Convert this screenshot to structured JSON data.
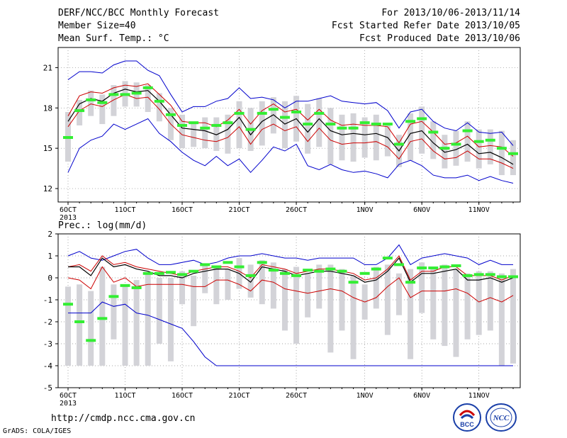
{
  "header": {
    "title": "DERF/NCC/BCC Monthly Forecast",
    "member_size": "Member Size=40",
    "variable": "Mean Surf. Temp.: °C",
    "forecast_range": "For 2013/10/06-2013/11/14",
    "start_refer": "Fcst Started Refer Date 2013/10/05",
    "produced": "Fcst Produced Date 2013/10/06"
  },
  "footer": {
    "url": "http://cmdp.ncc.cma.gov.cn",
    "credit": "GrADS: COLA/IGES",
    "logo_bcc": "BCC",
    "logo_ncc": "NCC"
  },
  "colors": {
    "ensemble_range": "#0000cc",
    "spread": "#cc0000",
    "mean": "#000000",
    "box": "#d3d3d8",
    "observed": "#33ee33"
  },
  "chart_data": [
    {
      "type": "box",
      "title": "Mean Surf. Temp.: °C",
      "ylim": [
        11,
        22.5
      ],
      "yticks": [
        12,
        15,
        18,
        21
      ],
      "ytick_labels": [
        "12",
        "15",
        "18",
        "21"
      ],
      "xticks": [
        {
          "day": 0,
          "label": "6OCT",
          "sub": "2013"
        },
        {
          "day": 5,
          "label": "11OCT"
        },
        {
          "day": 10,
          "label": "16OCT"
        },
        {
          "day": 15,
          "label": "21OCT"
        },
        {
          "day": 20,
          "label": "26OCT"
        },
        {
          "day": 26,
          "label": "1NOV"
        },
        {
          "day": 31,
          "label": "6NOV"
        },
        {
          "day": 36,
          "label": "11NOV"
        }
      ],
      "grid": true,
      "x_days": [
        0,
        1,
        2,
        3,
        4,
        5,
        6,
        7,
        8,
        9,
        10,
        11,
        12,
        13,
        14,
        15,
        16,
        17,
        18,
        19,
        20,
        21,
        22,
        23,
        24,
        25,
        26,
        27,
        28,
        29,
        30,
        31,
        32,
        33,
        34,
        35,
        36,
        37,
        38,
        39
      ],
      "series": [
        {
          "role": "max",
          "values": [
            20.1,
            20.7,
            20.7,
            20.6,
            21.2,
            21.5,
            21.5,
            20.8,
            20.4,
            19.0,
            17.7,
            18.1,
            18.1,
            18.5,
            18.7,
            19.5,
            18.7,
            18.8,
            18.6,
            18.0,
            18.5,
            18.5,
            18.7,
            18.9,
            18.5,
            18.4,
            18.3,
            18.4,
            17.8,
            16.5,
            17.7,
            17.9,
            17.0,
            16.5,
            16.3,
            16.9,
            16.2,
            16.1,
            16.2,
            15.2
          ]
        },
        {
          "role": "upper",
          "values": [
            17.4,
            18.9,
            19.2,
            19.1,
            19.5,
            19.7,
            19.6,
            19.8,
            19.0,
            18.2,
            17.0,
            16.9,
            16.9,
            16.6,
            17.1,
            17.9,
            16.8,
            17.8,
            18.3,
            17.7,
            17.9,
            17.1,
            17.9,
            17.1,
            16.7,
            16.8,
            16.7,
            16.7,
            16.6,
            15.4,
            16.8,
            17.0,
            16.2,
            15.3,
            15.4,
            15.9,
            15.1,
            15.2,
            15.1,
            14.4
          ]
        },
        {
          "role": "mean",
          "values": [
            17.0,
            18.3,
            18.7,
            18.5,
            19.1,
            19.4,
            19.2,
            19.3,
            18.5,
            17.5,
            16.5,
            16.4,
            16.3,
            16.0,
            16.4,
            17.3,
            16.0,
            17.0,
            17.5,
            16.8,
            17.2,
            16.2,
            17.2,
            16.3,
            16.0,
            16.1,
            16.0,
            16.1,
            15.8,
            14.8,
            16.1,
            16.3,
            15.4,
            14.7,
            14.9,
            15.3,
            14.6,
            14.7,
            14.3,
            13.8
          ]
        },
        {
          "role": "lower",
          "values": [
            16.6,
            17.8,
            18.3,
            18.1,
            18.6,
            19.0,
            18.7,
            18.8,
            17.9,
            16.8,
            16.0,
            15.8,
            15.6,
            15.5,
            15.8,
            16.6,
            15.3,
            16.4,
            16.8,
            16.3,
            16.6,
            15.5,
            16.5,
            15.6,
            15.3,
            15.4,
            15.4,
            15.5,
            15.1,
            14.2,
            15.5,
            15.7,
            14.8,
            14.2,
            14.3,
            14.8,
            14.2,
            14.2,
            13.9,
            13.5
          ]
        },
        {
          "role": "min",
          "values": [
            13.2,
            15.0,
            15.6,
            15.9,
            16.8,
            16.4,
            16.8,
            17.2,
            16.1,
            15.5,
            14.7,
            14.1,
            13.7,
            14.4,
            13.7,
            14.2,
            13.2,
            14.1,
            15.1,
            14.8,
            15.3,
            13.7,
            13.4,
            13.8,
            13.4,
            13.2,
            13.3,
            13.1,
            12.8,
            13.8,
            14.1,
            13.7,
            13.0,
            12.8,
            12.8,
            13.0,
            12.6,
            12.9,
            12.6,
            12.4
          ]
        }
      ],
      "boxes": [
        {
          "low": 14.0,
          "high": 17.7
        },
        {
          "low": 16.7,
          "high": 18.6
        },
        {
          "low": 17.4,
          "high": 19.3
        },
        {
          "low": 16.8,
          "high": 19.0
        },
        {
          "low": 17.4,
          "high": 19.7
        },
        {
          "low": 18.1,
          "high": 20.0
        },
        {
          "low": 18.1,
          "high": 19.9
        },
        {
          "low": 17.7,
          "high": 19.7
        },
        {
          "low": 17.0,
          "high": 19.1
        },
        {
          "low": 15.6,
          "high": 18.0
        },
        {
          "low": 15.0,
          "high": 17.5
        },
        {
          "low": 15.1,
          "high": 16.9
        },
        {
          "low": 15.0,
          "high": 17.3
        },
        {
          "low": 14.8,
          "high": 17.3
        },
        {
          "low": 14.6,
          "high": 17.5
        },
        {
          "low": 15.0,
          "high": 18.5
        },
        {
          "low": 14.8,
          "high": 18.0
        },
        {
          "low": 15.2,
          "high": 18.5
        },
        {
          "low": 16.1,
          "high": 18.8
        },
        {
          "low": 15.0,
          "high": 18.5
        },
        {
          "low": 15.5,
          "high": 18.9
        },
        {
          "low": 14.6,
          "high": 18.3
        },
        {
          "low": 15.1,
          "high": 18.7
        },
        {
          "low": 13.8,
          "high": 18.0
        },
        {
          "low": 14.1,
          "high": 17.5
        },
        {
          "low": 14.0,
          "high": 17.6
        },
        {
          "low": 14.3,
          "high": 17.3
        },
        {
          "low": 14.1,
          "high": 17.5
        },
        {
          "low": 14.4,
          "high": 16.8
        },
        {
          "low": 13.6,
          "high": 16.0
        },
        {
          "low": 14.1,
          "high": 17.6
        },
        {
          "low": 14.6,
          "high": 18.1
        },
        {
          "low": 14.2,
          "high": 17.0
        },
        {
          "low": 13.5,
          "high": 16.0
        },
        {
          "low": 13.7,
          "high": 16.3
        },
        {
          "low": 14.0,
          "high": 17.0
        },
        {
          "low": 13.5,
          "high": 16.4
        },
        {
          "low": 13.8,
          "high": 16.4
        },
        {
          "low": 13.0,
          "high": 16.3
        },
        {
          "low": 13.0,
          "high": 15.6
        }
      ],
      "observed": [
        15.8,
        17.8,
        18.6,
        18.4,
        19.0,
        19.0,
        19.1,
        19.5,
        18.5,
        17.5,
        16.7,
        16.9,
        16.5,
        16.7,
        16.9,
        17.6,
        16.4,
        17.6,
        17.9,
        17.3,
        17.7,
        16.8,
        17.6,
        16.8,
        16.5,
        16.5,
        16.9,
        16.8,
        16.8,
        15.3,
        17.0,
        17.2,
        16.2,
        15.0,
        15.3,
        16.3,
        15.5,
        15.6,
        15.0,
        14.6
      ]
    },
    {
      "type": "box",
      "title": "Prec.: log(mm/d)",
      "ylim": [
        -5,
        2
      ],
      "yticks": [
        -5,
        -4,
        -3,
        -2,
        -1,
        0,
        1,
        2
      ],
      "ytick_labels": [
        "-5",
        "-4",
        "-3",
        "-2",
        "-1",
        "0",
        "1",
        "2"
      ],
      "xticks": [
        {
          "day": 0,
          "label": "6OCT",
          "sub": "2013"
        },
        {
          "day": 5,
          "label": "11OCT"
        },
        {
          "day": 10,
          "label": "16OCT"
        },
        {
          "day": 15,
          "label": "21OCT"
        },
        {
          "day": 20,
          "label": "26OCT"
        },
        {
          "day": 26,
          "label": "1NOV"
        },
        {
          "day": 31,
          "label": "6NOV"
        },
        {
          "day": 36,
          "label": "11NOV"
        }
      ],
      "grid": true,
      "x_days": [
        0,
        1,
        2,
        3,
        4,
        5,
        6,
        7,
        8,
        9,
        10,
        11,
        12,
        13,
        14,
        15,
        16,
        17,
        18,
        19,
        20,
        21,
        22,
        23,
        24,
        25,
        26,
        27,
        28,
        29,
        30,
        31,
        32,
        33,
        34,
        35,
        36,
        37,
        38,
        39
      ],
      "series": [
        {
          "role": "max",
          "values": [
            1.0,
            1.2,
            0.9,
            0.8,
            1.0,
            1.2,
            1.3,
            0.9,
            0.6,
            0.6,
            0.7,
            0.8,
            0.6,
            0.7,
            0.9,
            1.0,
            1.0,
            1.1,
            1.0,
            0.9,
            0.9,
            0.8,
            0.9,
            0.9,
            0.9,
            0.9,
            0.6,
            0.6,
            0.9,
            1.5,
            0.6,
            0.9,
            1.0,
            1.1,
            1.0,
            0.9,
            0.6,
            0.8,
            0.6,
            0.6
          ]
        },
        {
          "role": "upper",
          "values": [
            0.5,
            0.6,
            0.3,
            1.0,
            0.6,
            0.7,
            0.5,
            0.4,
            0.3,
            0.2,
            0.1,
            0.3,
            0.4,
            0.5,
            0.5,
            0.3,
            0.0,
            0.6,
            0.5,
            0.4,
            0.2,
            0.3,
            0.4,
            0.4,
            0.3,
            0.2,
            -0.1,
            0.0,
            0.4,
            1.0,
            -0.1,
            0.3,
            0.3,
            0.5,
            0.5,
            0.1,
            0.1,
            0.1,
            -0.1,
            0.1
          ]
        },
        {
          "role": "mean",
          "values": [
            0.5,
            0.5,
            0.1,
            0.9,
            0.5,
            0.6,
            0.4,
            0.3,
            0.1,
            0.1,
            0.0,
            0.2,
            0.3,
            0.4,
            0.4,
            0.2,
            -0.2,
            0.5,
            0.4,
            0.3,
            0.1,
            0.2,
            0.3,
            0.3,
            0.2,
            0.1,
            -0.2,
            -0.1,
            0.3,
            0.9,
            -0.2,
            0.2,
            0.2,
            0.3,
            0.4,
            -0.1,
            -0.1,
            0.0,
            -0.2,
            0.0
          ]
        },
        {
          "role": "lower",
          "values": [
            0.0,
            -0.1,
            -0.5,
            0.5,
            -0.2,
            0.0,
            -0.4,
            -0.3,
            -0.3,
            -0.3,
            -0.3,
            -0.4,
            -0.4,
            -0.1,
            -0.1,
            -0.3,
            -0.6,
            -0.1,
            -0.2,
            -0.5,
            -0.6,
            -0.7,
            -0.6,
            -0.5,
            -0.6,
            -0.9,
            -1.1,
            -0.9,
            -0.4,
            0.0,
            -0.9,
            -0.6,
            -0.6,
            -0.6,
            -0.5,
            -0.7,
            -1.1,
            -0.9,
            -1.1,
            -0.8
          ]
        },
        {
          "role": "min",
          "values": [
            -1.6,
            -1.6,
            -1.6,
            -1.1,
            -1.3,
            -1.2,
            -1.6,
            -1.7,
            -1.9,
            -2.1,
            -2.3,
            -2.9,
            -3.6,
            -4.0,
            -4.0,
            -4.0,
            -4.0,
            -4.0,
            -4.0,
            -4.0,
            -4.0,
            -4.0,
            -4.0,
            -4.0,
            -4.0,
            -4.0,
            -4.0,
            -4.0,
            -4.0,
            -4.0,
            -4.0,
            -4.0,
            -4.0,
            -4.0,
            -4.0,
            -4.0,
            -4.0,
            -4.0,
            -4.0,
            -4.0
          ]
        }
      ],
      "boxes": [
        {
          "low": -4.0,
          "high": -0.4
        },
        {
          "low": -4.0,
          "high": -0.3
        },
        {
          "low": -4.0,
          "high": -0.6
        },
        {
          "low": -4.0,
          "high": 0.5
        },
        {
          "low": -2.8,
          "high": -0.3
        },
        {
          "low": -4.0,
          "high": -0.3
        },
        {
          "low": -4.0,
          "high": -0.1
        },
        {
          "low": -4.0,
          "high": 0.2
        },
        {
          "low": -3.0,
          "high": 0.0
        },
        {
          "low": -3.8,
          "high": 0.0
        },
        {
          "low": -1.2,
          "high": 0.3
        },
        {
          "low": -2.2,
          "high": 0.1
        },
        {
          "low": -0.7,
          "high": 0.6
        },
        {
          "low": -1.2,
          "high": 0.5
        },
        {
          "low": -1.0,
          "high": 0.4
        },
        {
          "low": -0.5,
          "high": 0.9
        },
        {
          "low": -0.9,
          "high": 0.6
        },
        {
          "low": -1.2,
          "high": 0.8
        },
        {
          "low": -1.4,
          "high": 0.7
        },
        {
          "low": -2.4,
          "high": 0.4
        },
        {
          "low": -3.0,
          "high": 0.5
        },
        {
          "low": -1.8,
          "high": 0.2
        },
        {
          "low": -1.4,
          "high": 0.6
        },
        {
          "low": -3.4,
          "high": 0.6
        },
        {
          "low": -2.4,
          "high": 0.4
        },
        {
          "low": -3.7,
          "high": 0.1
        },
        {
          "low": -1.9,
          "high": -0.3
        },
        {
          "low": -1.4,
          "high": 0.5
        },
        {
          "low": -2.6,
          "high": 0.6
        },
        {
          "low": -1.7,
          "high": 0.2
        },
        {
          "low": -3.7,
          "high": 0.4
        },
        {
          "low": -1.6,
          "high": 0.7
        },
        {
          "low": -2.8,
          "high": 0.5
        },
        {
          "low": -3.1,
          "high": 0.6
        },
        {
          "low": -3.6,
          "high": 0.4
        },
        {
          "low": -2.8,
          "high": 0.2
        },
        {
          "low": -2.6,
          "high": 0.3
        },
        {
          "low": -2.4,
          "high": 0.3
        },
        {
          "low": -4.0,
          "high": 0.2
        },
        {
          "low": -3.9,
          "high": 0.4
        }
      ],
      "observed": [
        -1.2,
        -2.0,
        -2.85,
        -1.85,
        -0.85,
        -0.35,
        -0.45,
        0.2,
        0.2,
        0.25,
        0.15,
        0.3,
        0.6,
        0.5,
        0.7,
        0.5,
        0.1,
        0.7,
        0.35,
        0.2,
        0.1,
        0.35,
        0.3,
        0.4,
        0.3,
        -0.2,
        0.2,
        0.4,
        0.9,
        0.6,
        -0.2,
        0.45,
        0.45,
        0.5,
        0.55,
        0.1,
        0.15,
        0.15,
        0.05,
        0.05
      ]
    }
  ]
}
